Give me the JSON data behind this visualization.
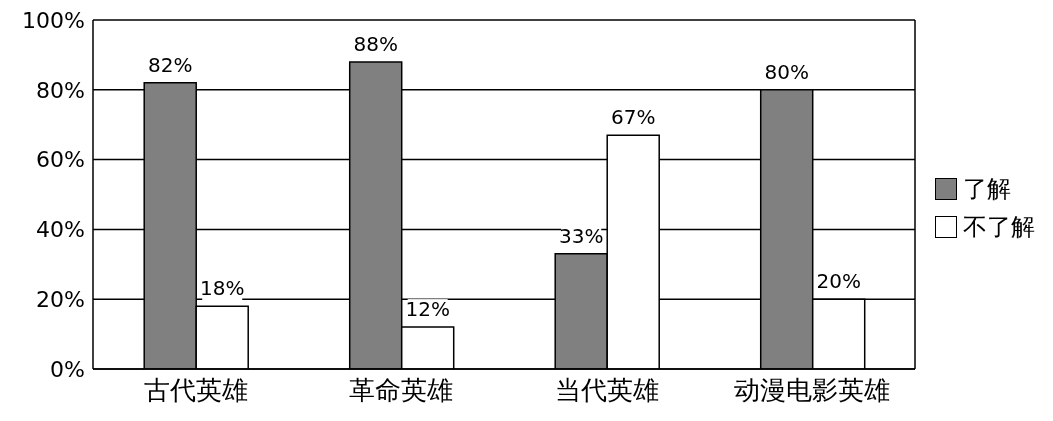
{
  "chart_data": {
    "type": "bar",
    "categories": [
      "古代英雄",
      "革命英雄",
      "当代英雄",
      "动漫电影英雄"
    ],
    "series": [
      {
        "name": "了解",
        "color": "#808080",
        "values": [
          82,
          88,
          33,
          80
        ],
        "value_labels": [
          "82%",
          "88%",
          "33%",
          "80%"
        ]
      },
      {
        "name": "不了解",
        "color": "#ffffff",
        "values": [
          18,
          12,
          67,
          20
        ],
        "value_labels": [
          "18%",
          "12%",
          "67%",
          "20%"
        ]
      }
    ],
    "ylim": [
      0,
      100
    ],
    "yticks": [
      {
        "value": 0,
        "label": "0%"
      },
      {
        "value": 20,
        "label": "20%"
      },
      {
        "value": 40,
        "label": "40%"
      },
      {
        "value": 60,
        "label": "60%"
      },
      {
        "value": 80,
        "label": "80%"
      },
      {
        "value": 100,
        "label": "100%"
      }
    ],
    "grid": "y",
    "legend": "right"
  }
}
